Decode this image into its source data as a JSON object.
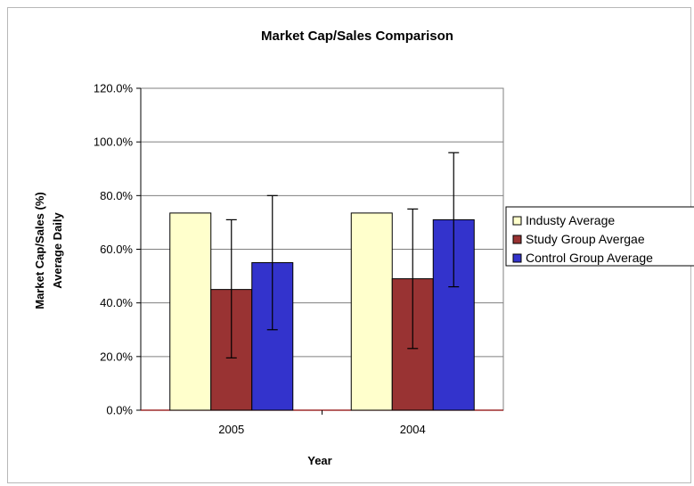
{
  "chart_data": {
    "type": "bar",
    "title": "Market Cap/Sales Comparison",
    "xlabel": "Year",
    "ylabel_lines": [
      "Market Cap/Sales (%)",
      "Average Daily"
    ],
    "categories": [
      "2005",
      "2004"
    ],
    "ylim": [
      0,
      120
    ],
    "yticks": [
      0,
      20,
      40,
      60,
      80,
      100,
      120
    ],
    "ytick_labels": [
      "0.0%",
      "20.0%",
      "40.0%",
      "60.0%",
      "80.0%",
      "100.0%",
      "120.0%"
    ],
    "grid": true,
    "legend_position": "right",
    "series": [
      {
        "name": "Industy Average",
        "color": "#ffffcc",
        "values": [
          73.5,
          73.5
        ],
        "error": [
          null,
          null
        ]
      },
      {
        "name": "Study Group Avergae",
        "color": "#993333",
        "values": [
          45.0,
          49.0
        ],
        "error": [
          [
            19.5,
            71.0
          ],
          [
            23.0,
            75.0
          ]
        ]
      },
      {
        "name": "Control Group Average",
        "color": "#3333cc",
        "values": [
          55.0,
          71.0
        ],
        "error": [
          [
            30.0,
            80.0
          ],
          [
            46.0,
            96.0
          ]
        ]
      }
    ]
  }
}
